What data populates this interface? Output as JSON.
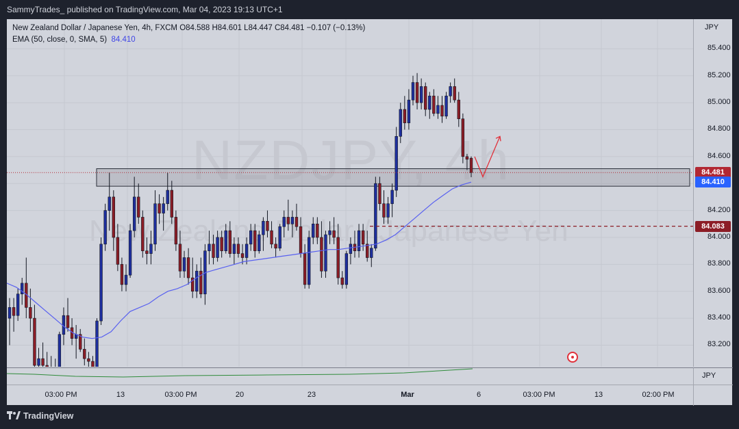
{
  "header": {
    "publisher": "SammyTrades_ published on TradingView.com, Mar 04, 2023 19:13 UTC+1"
  },
  "legend": {
    "line1": "New Zealand Dollar / Japanese Yen, 4h, FXCM  O84.588  H84.601  L84.447  C84.481  −0.107 (−0.13%)",
    "line2_label": "EMA (50, close, 0, SMA, 5)",
    "line2_value": "84.410"
  },
  "watermark": {
    "symbol": "NZDJPY, 4h",
    "name": "New Zealand Dollar / Japanese Yen"
  },
  "price_axis": {
    "currency": "JPY",
    "ticks": [
      "85.400",
      "85.200",
      "85.000",
      "84.800",
      "84.600",
      "84.400",
      "84.200",
      "84.000",
      "83.800",
      "83.600",
      "83.400",
      "83.200"
    ],
    "badges": [
      {
        "label": "84.481",
        "color": "#b22833"
      },
      {
        "label": "84.410",
        "color": "#2962ff"
      },
      {
        "label": "84.083",
        "color": "#8c1d26"
      }
    ]
  },
  "sub_axis": {
    "currency": "JPY"
  },
  "time_axis": {
    "ticks": [
      "03:00 PM",
      "13",
      "03:00 PM",
      "20",
      "23",
      "Mar",
      "6",
      "03:00 PM",
      "13",
      "02:00 PM"
    ]
  },
  "footer": {
    "brand": "TradingView"
  },
  "colors": {
    "up": "#1e2f9e",
    "down": "#8c1d26",
    "ema": "#5860f0",
    "zone": "#b22833",
    "indicator": "#2e8b3a"
  },
  "chart_data": {
    "type": "candlestick",
    "title": "New Zealand Dollar / Japanese Yen, 4h, FXCM",
    "ylabel": "JPY",
    "ylim": [
      83.04,
      85.62
    ],
    "last_close": 84.481,
    "ema_last": 84.41,
    "dashed_level": 84.083,
    "zone": [
      84.38,
      84.51
    ],
    "candles_ohlc": [
      [
        83.4,
        83.55,
        83.2,
        83.48
      ],
      [
        83.48,
        83.55,
        83.3,
        83.42
      ],
      [
        83.42,
        83.62,
        83.38,
        83.58
      ],
      [
        83.58,
        83.7,
        83.5,
        83.66
      ],
      [
        83.66,
        83.85,
        83.4,
        83.48
      ],
      [
        83.48,
        83.62,
        83.3,
        83.4
      ],
      [
        83.4,
        83.5,
        83.0,
        83.05
      ],
      [
        83.05,
        83.18,
        83.0,
        83.1
      ],
      [
        83.1,
        83.22,
        83.0,
        83.05
      ],
      [
        83.05,
        83.15,
        82.95,
        83.02
      ],
      [
        83.02,
        83.12,
        82.96,
        83.0
      ],
      [
        83.0,
        83.1,
        82.9,
        83.02
      ],
      [
        83.02,
        83.3,
        83.0,
        83.28
      ],
      [
        83.28,
        83.48,
        83.2,
        83.42
      ],
      [
        83.42,
        83.55,
        83.3,
        83.33
      ],
      [
        83.33,
        83.4,
        83.2,
        83.25
      ],
      [
        83.25,
        83.35,
        83.1,
        83.28
      ],
      [
        83.28,
        83.32,
        83.15,
        83.17
      ],
      [
        83.17,
        83.25,
        83.05,
        83.1
      ],
      [
        83.1,
        83.15,
        83.0,
        83.08
      ],
      [
        83.08,
        83.12,
        83.0,
        83.02
      ],
      [
        83.02,
        83.4,
        83.0,
        83.38
      ],
      [
        83.38,
        84.0,
        83.35,
        83.95
      ],
      [
        83.95,
        84.25,
        83.9,
        84.2
      ],
      [
        84.2,
        84.48,
        84.05,
        84.3
      ],
      [
        84.3,
        84.35,
        83.9,
        84.0
      ],
      [
        84.0,
        84.1,
        83.75,
        83.8
      ],
      [
        83.8,
        83.85,
        83.6,
        83.65
      ],
      [
        83.65,
        83.8,
        83.6,
        83.72
      ],
      [
        83.72,
        84.1,
        83.7,
        84.05
      ],
      [
        84.05,
        84.45,
        84.0,
        84.3
      ],
      [
        84.3,
        84.4,
        84.1,
        84.15
      ],
      [
        84.15,
        84.2,
        83.85,
        83.9
      ],
      [
        83.9,
        84.0,
        83.8,
        83.88
      ],
      [
        83.88,
        84.05,
        83.8,
        83.95
      ],
      [
        83.95,
        84.35,
        83.9,
        84.25
      ],
      [
        84.25,
        84.32,
        84.1,
        84.18
      ],
      [
        84.18,
        84.3,
        84.05,
        84.25
      ],
      [
        84.25,
        84.48,
        84.2,
        84.35
      ],
      [
        84.35,
        84.42,
        84.1,
        84.15
      ],
      [
        84.15,
        84.2,
        83.9,
        83.95
      ],
      [
        83.95,
        84.05,
        83.7,
        83.75
      ],
      [
        83.75,
        83.9,
        83.7,
        83.85
      ],
      [
        83.85,
        83.92,
        83.65,
        83.7
      ],
      [
        83.7,
        83.85,
        83.55,
        83.6
      ],
      [
        83.6,
        83.8,
        83.55,
        83.75
      ],
      [
        83.75,
        83.85,
        83.55,
        83.58
      ],
      [
        83.58,
        83.95,
        83.5,
        83.9
      ],
      [
        83.9,
        84.05,
        83.8,
        83.95
      ],
      [
        83.95,
        84.02,
        83.8,
        83.85
      ],
      [
        83.85,
        84.05,
        83.82,
        84.0
      ],
      [
        84.0,
        84.05,
        83.85,
        83.9
      ],
      [
        83.9,
        84.1,
        83.88,
        84.05
      ],
      [
        84.05,
        84.12,
        83.85,
        83.88
      ],
      [
        83.88,
        84.0,
        83.8,
        83.95
      ],
      [
        83.95,
        84.0,
        83.85,
        83.88
      ],
      [
        83.88,
        83.95,
        83.8,
        83.85
      ],
      [
        83.85,
        84.0,
        83.8,
        83.95
      ],
      [
        83.95,
        84.1,
        83.9,
        84.05
      ],
      [
        84.05,
        84.1,
        83.85,
        83.9
      ],
      [
        83.9,
        84.05,
        83.88,
        84.02
      ],
      [
        84.02,
        84.15,
        83.9,
        84.12
      ],
      [
        84.12,
        84.2,
        84.0,
        84.05
      ],
      [
        84.05,
        84.12,
        83.92,
        83.95
      ],
      [
        83.95,
        84.0,
        83.85,
        83.92
      ],
      [
        83.92,
        84.1,
        83.9,
        84.08
      ],
      [
        84.08,
        84.2,
        84.0,
        84.15
      ],
      [
        84.15,
        84.28,
        84.05,
        84.1
      ],
      [
        84.1,
        84.2,
        84.0,
        84.15
      ],
      [
        84.15,
        84.25,
        84.05,
        84.08
      ],
      [
        84.08,
        84.15,
        83.85,
        83.88
      ],
      [
        83.88,
        83.95,
        83.62,
        83.65
      ],
      [
        83.65,
        84.05,
        83.62,
        84.0
      ],
      [
        84.0,
        84.15,
        83.95,
        84.1
      ],
      [
        84.1,
        84.15,
        83.95,
        84.0
      ],
      [
        84.0,
        84.12,
        83.7,
        83.75
      ],
      [
        83.75,
        84.05,
        83.7,
        84.02
      ],
      [
        84.02,
        84.12,
        83.95,
        84.05
      ],
      [
        84.05,
        84.15,
        83.95,
        84.0
      ],
      [
        84.0,
        84.1,
        83.65,
        83.7
      ],
      [
        83.7,
        83.75,
        83.62,
        83.65
      ],
      [
        83.65,
        83.9,
        83.62,
        83.88
      ],
      [
        83.88,
        84.0,
        83.8,
        83.95
      ],
      [
        83.95,
        84.05,
        83.85,
        83.9
      ],
      [
        83.9,
        84.1,
        83.85,
        84.05
      ],
      [
        84.05,
        84.1,
        83.9,
        83.95
      ],
      [
        83.95,
        84.05,
        83.82,
        83.85
      ],
      [
        83.85,
        83.95,
        83.78,
        83.92
      ],
      [
        83.92,
        84.45,
        83.9,
        84.4
      ],
      [
        84.4,
        84.45,
        84.2,
        84.25
      ],
      [
        84.25,
        84.35,
        84.1,
        84.15
      ],
      [
        84.15,
        84.3,
        84.1,
        84.25
      ],
      [
        84.25,
        84.4,
        84.15,
        84.35
      ],
      [
        84.35,
        84.82,
        84.3,
        84.75
      ],
      [
        84.75,
        85.0,
        84.7,
        84.95
      ],
      [
        84.95,
        85.05,
        84.8,
        84.85
      ],
      [
        84.85,
        85.1,
        84.8,
        85.02
      ],
      [
        85.02,
        85.2,
        84.98,
        85.15
      ],
      [
        85.15,
        85.22,
        84.95,
        85.0
      ],
      [
        85.0,
        85.18,
        84.95,
        85.12
      ],
      [
        85.12,
        85.15,
        84.9,
        84.95
      ],
      [
        84.95,
        85.08,
        84.88,
        85.05
      ],
      [
        85.05,
        85.1,
        84.9,
        84.92
      ],
      [
        84.92,
        85.05,
        84.88,
        84.98
      ],
      [
        84.98,
        85.05,
        84.85,
        84.9
      ],
      [
        84.9,
        85.08,
        84.88,
        85.05
      ],
      [
        85.05,
        85.15,
        85.0,
        85.12
      ],
      [
        85.12,
        85.18,
        85.0,
        85.02
      ],
      [
        85.02,
        85.08,
        84.82,
        84.88
      ],
      [
        84.88,
        84.92,
        84.55,
        84.6
      ],
      [
        84.6,
        84.62,
        84.5,
        84.58
      ],
      [
        84.588,
        84.601,
        84.447,
        84.481
      ]
    ],
    "ema_values": [
      83.66,
      83.63,
      83.58,
      83.52,
      83.46,
      83.4,
      83.34,
      83.29,
      83.26,
      83.25,
      83.26,
      83.3,
      83.38,
      83.45,
      83.48,
      83.51,
      83.56,
      83.6,
      83.62,
      83.65,
      83.7,
      83.74,
      83.76,
      83.78,
      83.8,
      83.82,
      83.83,
      83.84,
      83.85,
      83.86,
      83.87,
      83.88,
      83.89,
      83.9,
      83.91,
      83.91,
      83.92,
      83.93,
      83.94,
      83.95,
      83.98,
      84.02,
      84.08,
      84.14,
      84.2,
      84.26,
      84.31,
      84.36,
      84.39,
      84.41
    ],
    "projection": [
      [
        84.6,
        84.45
      ],
      [
        84.45,
        84.75
      ]
    ]
  }
}
